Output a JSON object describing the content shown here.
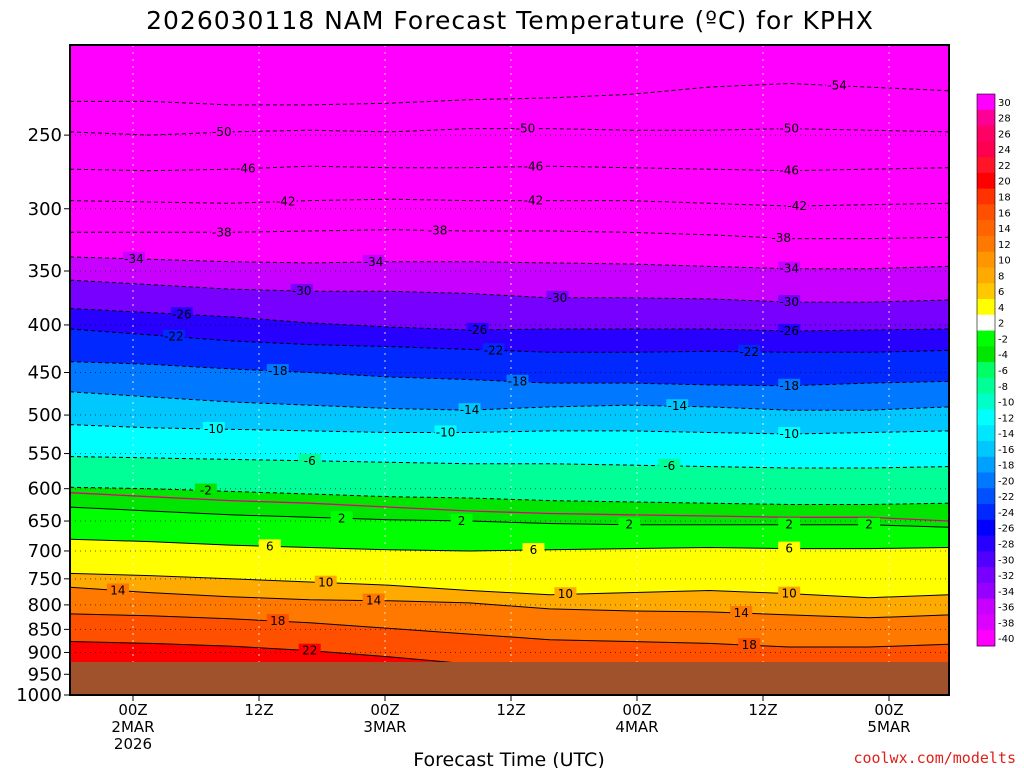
{
  "chart_data": {
    "type": "heatmap",
    "title": "2026030118 NAM Forecast Temperature (ºC) for KPHX",
    "xlabel": "Forecast Time (UTC)",
    "ylabel": "",
    "y_axis": {
      "scale": "log",
      "reversed": true,
      "ticks": [
        250,
        300,
        350,
        400,
        450,
        500,
        550,
        600,
        650,
        700,
        750,
        800,
        850,
        900,
        950,
        1000
      ],
      "ylim": [
        1000,
        200
      ]
    },
    "x_axis": {
      "ticks": [
        {
          "line1": "00Z",
          "line2": "2MAR",
          "line3": "2026"
        },
        {
          "line1": "12Z",
          "line2": "",
          "line3": ""
        },
        {
          "line1": "00Z",
          "line2": "3MAR",
          "line3": ""
        },
        {
          "line1": "12Z",
          "line2": "",
          "line3": ""
        },
        {
          "line1": "00Z",
          "line2": "4MAR",
          "line3": ""
        },
        {
          "line1": "12Z",
          "line2": "",
          "line3": ""
        },
        {
          "line1": "00Z",
          "line2": "5MAR",
          "line3": ""
        }
      ]
    },
    "grid": true,
    "legend": "right colorbar",
    "colorbar": {
      "levels": [
        30,
        28,
        26,
        24,
        22,
        20,
        18,
        16,
        14,
        12,
        10,
        8,
        6,
        4,
        2,
        -2,
        -4,
        -6,
        -8,
        -10,
        -12,
        -14,
        -16,
        -18,
        -20,
        -22,
        -24,
        -26,
        -28,
        -30,
        -32,
        -34,
        -36,
        -38,
        -40
      ],
      "colors": [
        "#ff00ff",
        "#ff0096",
        "#ff0064",
        "#ff0050",
        "#ff1428",
        "#ff0000",
        "#ff3200",
        "#ff5000",
        "#ff6400",
        "#ff7800",
        "#ff9600",
        "#ffaa00",
        "#ffc800",
        "#ffff00",
        "#ffffff",
        "#00ff00",
        "#00e600",
        "#00ff64",
        "#00ff96",
        "#00ffc8",
        "#00ffff",
        "#00e6ff",
        "#00c8ff",
        "#00a0ff",
        "#0078ff",
        "#0050ff",
        "#0028ff",
        "#0000ff",
        "#2800ff",
        "#5000ff",
        "#7800ff",
        "#9600ff",
        "#c800ff",
        "#dc00ff",
        "#ff00ff"
      ]
    },
    "contours": [
      {
        "level": -54,
        "p": [
          230,
          230,
          232,
          232,
          231,
          229,
          228,
          226,
          222,
          220,
          222,
          224
        ],
        "labels": [
          {
            "t": "-54",
            "col": 9.6
          }
        ]
      },
      {
        "level": -50,
        "p": [
          248,
          250,
          248,
          247,
          248,
          246,
          246,
          247,
          247,
          246,
          247,
          248
        ],
        "labels": [
          {
            "t": "-50",
            "col": 1.9
          },
          {
            "t": "-50",
            "col": 5.7
          },
          {
            "t": "-50",
            "col": 9.0
          }
        ]
      },
      {
        "level": -46,
        "p": [
          272,
          273,
          272,
          270,
          271,
          271,
          270,
          271,
          272,
          273,
          272,
          271
        ],
        "labels": [
          {
            "t": "-46",
            "col": 2.2
          },
          {
            "t": "-46",
            "col": 5.8
          },
          {
            "t": "-46",
            "col": 9.0
          }
        ]
      },
      {
        "level": -42,
        "p": [
          294,
          295,
          296,
          294,
          293,
          294,
          294,
          294,
          296,
          298,
          297,
          296
        ],
        "labels": [
          {
            "t": "-42",
            "col": 2.7
          },
          {
            "t": "-42",
            "col": 5.8
          },
          {
            "t": "-42",
            "col": 9.1
          }
        ]
      },
      {
        "level": -38,
        "p": [
          318,
          318,
          318,
          317,
          316,
          317,
          317,
          318,
          320,
          323,
          323,
          322
        ],
        "labels": [
          {
            "t": "-38",
            "col": 1.9
          },
          {
            "t": "-38",
            "col": 4.6
          },
          {
            "t": "-38",
            "col": 8.9
          }
        ]
      },
      {
        "level": -34,
        "p": [
          338,
          340,
          342,
          343,
          342,
          342,
          343,
          344,
          346,
          348,
          348,
          346
        ],
        "labels": [
          {
            "t": "-34",
            "col": 0.8
          },
          {
            "t": "-34",
            "col": 3.8
          },
          {
            "t": "-34",
            "col": 9.0
          }
        ]
      },
      {
        "level": -30,
        "p": [
          358,
          362,
          366,
          368,
          368,
          370,
          374,
          374,
          375,
          378,
          378,
          376
        ],
        "labels": [
          {
            "t": "-30",
            "col": 2.9
          },
          {
            "t": "-30",
            "col": 6.1
          },
          {
            "t": "-30",
            "col": 9.0
          }
        ]
      },
      {
        "level": -26,
        "p": [
          384,
          388,
          392,
          398,
          402,
          405,
          404,
          404,
          404,
          406,
          405,
          404
        ],
        "labels": [
          {
            "t": "-26",
            "col": 1.4
          },
          {
            "t": "-26",
            "col": 5.1
          },
          {
            "t": "-26",
            "col": 9.0
          }
        ]
      },
      {
        "level": -22,
        "p": [
          404,
          410,
          416,
          420,
          422,
          425,
          428,
          428,
          427,
          428,
          428,
          426
        ],
        "labels": [
          {
            "t": "-22",
            "col": 1.3
          },
          {
            "t": "-22",
            "col": 5.3
          },
          {
            "t": "-22",
            "col": 8.5
          }
        ]
      },
      {
        "level": -18,
        "p": [
          438,
          441,
          446,
          450,
          455,
          458,
          462,
          462,
          464,
          465,
          462,
          460
        ],
        "labels": [
          {
            "t": "-18",
            "col": 2.6
          },
          {
            "t": "-18",
            "col": 5.6
          },
          {
            "t": "-18",
            "col": 9.0
          }
        ]
      },
      {
        "level": -14,
        "p": [
          472,
          478,
          484,
          488,
          492,
          494,
          490,
          488,
          490,
          494,
          494,
          490
        ],
        "labels": [
          {
            "t": "-14",
            "col": 5.0
          },
          {
            "t": "-14",
            "col": 7.6
          }
        ]
      },
      {
        "level": -10,
        "p": [
          512,
          516,
          518,
          520,
          522,
          522,
          520,
          520,
          522,
          524,
          522,
          520
        ],
        "labels": [
          {
            "t": "-10",
            "col": 1.8
          },
          {
            "t": "-10",
            "col": 4.7
          },
          {
            "t": "-10",
            "col": 9.0
          }
        ]
      },
      {
        "level": -6,
        "p": [
          554,
          556,
          558,
          560,
          562,
          564,
          564,
          566,
          568,
          570,
          570,
          568
        ],
        "labels": [
          {
            "t": "-6",
            "col": 3.0
          },
          {
            "t": "-6",
            "col": 7.5
          }
        ]
      },
      {
        "level": -2,
        "p": [
          598,
          600,
          604,
          608,
          612,
          614,
          618,
          620,
          622,
          624,
          624,
          622
        ],
        "labels": [
          {
            "t": "-2",
            "col": 1.7
          }
        ]
      },
      {
        "level": 0,
        "magenta": true,
        "p": [
          606,
          612,
          618,
          622,
          628,
          634,
          638,
          640,
          642,
          644,
          644,
          650
        ],
        "labels": []
      },
      {
        "level": 2,
        "p": [
          628,
          634,
          640,
          644,
          648,
          650,
          654,
          656,
          656,
          656,
          656,
          660
        ],
        "labels": [
          {
            "t": "2",
            "col": 4.9
          },
          {
            "t": "2",
            "col": 3.4
          },
          {
            "t": "2",
            "col": 7.0
          },
          {
            "t": "2",
            "col": 9.0
          },
          {
            "t": "2",
            "col": 10.0
          }
        ]
      },
      {
        "level": 6,
        "p": [
          680,
          684,
          690,
          694,
          698,
          700,
          698,
          696,
          694,
          696,
          696,
          694
        ],
        "labels": [
          {
            "t": "6",
            "col": 2.5
          },
          {
            "t": "6",
            "col": 5.8
          },
          {
            "t": "6",
            "col": 9.0
          }
        ]
      },
      {
        "level": 10,
        "p": [
          740,
          744,
          750,
          756,
          762,
          772,
          780,
          776,
          772,
          778,
          786,
          780
        ],
        "labels": [
          {
            "t": "10",
            "col": 3.2
          },
          {
            "t": "10",
            "col": 6.2
          },
          {
            "t": "10",
            "col": 9.0
          }
        ]
      },
      {
        "level": 14,
        "p": [
          766,
          776,
          784,
          790,
          792,
          796,
          808,
          812,
          814,
          820,
          826,
          820
        ],
        "labels": [
          {
            "t": "14",
            "col": 0.6
          },
          {
            "t": "14",
            "col": 3.8
          },
          {
            "t": "14",
            "col": 8.4
          }
        ]
      },
      {
        "level": 18,
        "p": [
          818,
          822,
          828,
          836,
          848,
          860,
          872,
          876,
          880,
          888,
          888,
          882
        ],
        "labels": [
          {
            "t": "18",
            "col": 2.6
          },
          {
            "t": "18",
            "col": 8.5
          }
        ]
      },
      {
        "level": 22,
        "p": [
          876,
          880,
          886,
          896,
          910,
          926,
          934,
          936,
          934,
          940,
          942,
          938
        ],
        "labels": [
          {
            "t": "22",
            "col": 3.0
          }
        ]
      }
    ],
    "credit": "coolwx.com/modelts"
  }
}
